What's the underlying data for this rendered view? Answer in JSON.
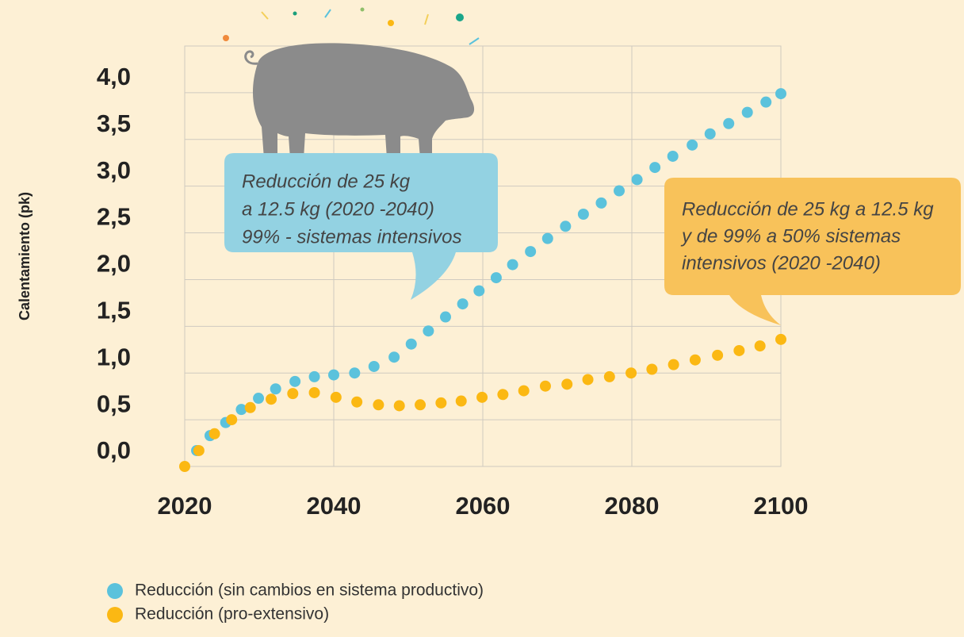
{
  "chart_data": {
    "type": "scatter",
    "y_label": "Calentamiento (pk)",
    "xlim": [
      2020,
      2100
    ],
    "xticks": [
      2020,
      2040,
      2060,
      2080,
      2100
    ],
    "ylim": [
      0,
      4.5
    ],
    "yticks": [
      {
        "value": 0,
        "label": "0,0"
      },
      {
        "value": 0.5,
        "label": "0,5"
      },
      {
        "value": 1,
        "label": "1,0"
      },
      {
        "value": 1.5,
        "label": "1,5"
      },
      {
        "value": 2,
        "label": "2,0"
      },
      {
        "value": 2.5,
        "label": "2,5"
      },
      {
        "value": 3,
        "label": "3,0"
      },
      {
        "value": 3.5,
        "label": "3,5"
      },
      {
        "value": 4,
        "label": "4,0"
      }
    ],
    "grid": true,
    "series": [
      {
        "name": "Reducción (sin cambios en sistema productivo)",
        "color": "#5bc2dc",
        "x": [
          2021.6,
          2023.4,
          2025.5,
          2027.6,
          2029.9,
          2032.2,
          2034.8,
          2037.4,
          2040.0,
          2042.8,
          2045.4,
          2048.1,
          2050.4,
          2052.7,
          2055.0,
          2057.3,
          2059.5,
          2061.8,
          2064.0,
          2066.4,
          2068.7,
          2071.1,
          2073.5,
          2075.9,
          2078.3,
          2080.7,
          2083.1,
          2085.5,
          2088.1,
          2090.5,
          2093.0,
          2095.5,
          2098.0,
          2100.0
        ],
        "values": [
          0.17,
          0.33,
          0.47,
          0.61,
          0.73,
          0.83,
          0.91,
          0.96,
          0.98,
          1.0,
          1.07,
          1.17,
          1.31,
          1.45,
          1.6,
          1.74,
          1.88,
          2.02,
          2.16,
          2.3,
          2.44,
          2.57,
          2.7,
          2.82,
          2.95,
          3.07,
          3.2,
          3.32,
          3.44,
          3.56,
          3.67,
          3.79,
          3.9,
          3.99
        ]
      },
      {
        "name": "Reducción (pro-extensivo)",
        "color": "#fbb813",
        "x": [
          2020.0,
          2021.9,
          2024.0,
          2026.3,
          2028.8,
          2031.6,
          2034.5,
          2037.4,
          2040.3,
          2043.1,
          2046.0,
          2048.8,
          2051.6,
          2054.4,
          2057.1,
          2059.9,
          2062.7,
          2065.5,
          2068.4,
          2071.3,
          2074.1,
          2077.0,
          2079.9,
          2082.7,
          2085.6,
          2088.5,
          2091.5,
          2094.4,
          2097.2,
          2100.0
        ],
        "values": [
          0.0,
          0.17,
          0.35,
          0.5,
          0.63,
          0.72,
          0.78,
          0.79,
          0.74,
          0.69,
          0.66,
          0.65,
          0.66,
          0.68,
          0.7,
          0.74,
          0.77,
          0.81,
          0.86,
          0.88,
          0.93,
          0.96,
          1.0,
          1.04,
          1.09,
          1.14,
          1.19,
          1.24,
          1.29,
          1.36
        ]
      }
    ],
    "annotations": [
      {
        "lines": [
          "Reducción de 25 kg",
          "a 12.5 kg (2020 -2040)",
          "99% - sistemas intensivos"
        ]
      },
      {
        "lines": [
          "Reducción de 25 kg a 12.5 kg",
          "y de 99% a 50% sistemas",
          "intensivos (2020 -2040)"
        ]
      }
    ]
  }
}
